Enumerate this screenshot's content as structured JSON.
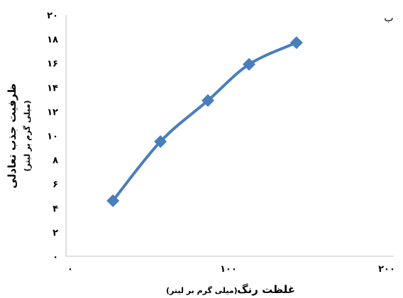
{
  "chart_data": {
    "type": "line",
    "panel_label": "ب",
    "x": [
      27,
      57,
      87,
      113,
      143
    ],
    "values": [
      4.6,
      9.5,
      12.9,
      15.9,
      17.7
    ],
    "x_ticks": [
      "۰",
      "۱۰۰",
      "۲۰۰"
    ],
    "y_ticks": [
      "۰",
      "۲",
      "۴",
      "۶",
      "۸",
      "۱۰",
      "۱۲",
      "۱۴",
      "۱۶",
      "۱۸",
      "۲۰"
    ],
    "xlim": [
      0,
      200
    ],
    "ylim": [
      0,
      20
    ],
    "xlabel_main": "غلظت رنگ",
    "xlabel_unit": "(میلی گرم بر لیتر)",
    "ylabel_main": "ظرفیت جذب تعادلی",
    "ylabel_unit": "(میلی گرم بر لیتر)",
    "grid": false,
    "legend": "none",
    "series_color": "#4a7ebb"
  }
}
